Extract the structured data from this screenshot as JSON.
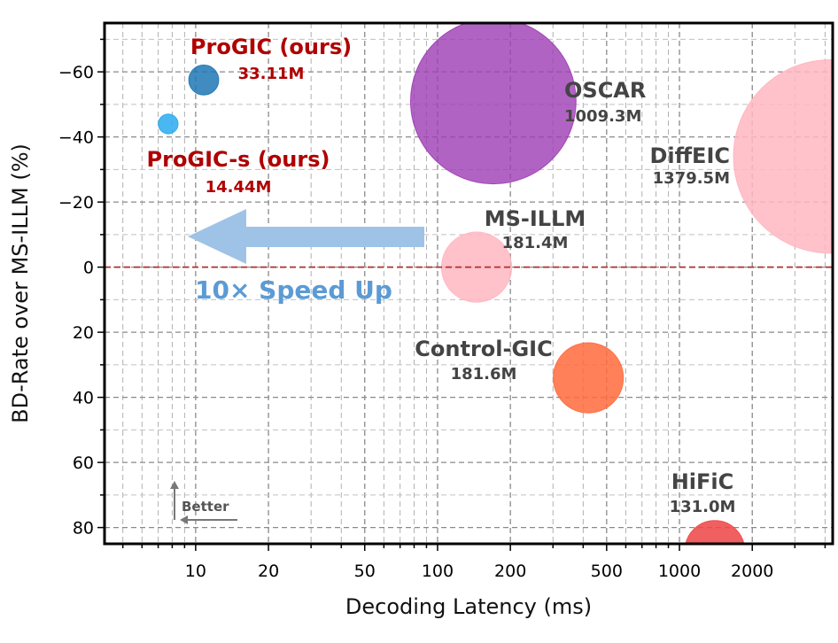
{
  "chart_data": {
    "type": "scatter",
    "title": "",
    "xlabel": "Decoding Latency (ms)",
    "ylabel": "BD-Rate over MS-ILLM (%)",
    "xscale": "log",
    "xlim": [
      4.2,
      4300
    ],
    "ylim": [
      85,
      -75
    ],
    "y_axis_inverted": true,
    "grid": true,
    "x_ticks": [
      10,
      20,
      50,
      100,
      200,
      500,
      1000,
      2000
    ],
    "x_tick_labels": [
      "10",
      "20",
      "50",
      "100",
      "200",
      "500",
      1000,
      2000
    ],
    "y_ticks": [
      -60,
      -40,
      -20,
      0,
      20,
      40,
      60,
      80
    ],
    "y_tick_labels": [
      "−60",
      "−40",
      "−20",
      "0",
      "20",
      "40",
      "60",
      "80"
    ],
    "reference_line": {
      "y": 0,
      "style": "dashed",
      "color": "#b03030"
    },
    "points": [
      {
        "name": "ProGIC (ours)",
        "params": "33.11M",
        "latency_ms": 10.8,
        "bd_rate": -57.5,
        "model_size_m": 33.11,
        "color": "#1f77b4",
        "label_color": "#b00000"
      },
      {
        "name": "ProGIC-s (ours)",
        "params": "14.44M",
        "latency_ms": 7.7,
        "bd_rate": -44,
        "model_size_m": 14.44,
        "color": "#29aaee",
        "label_color": "#b00000"
      },
      {
        "name": "OSCAR",
        "params": "1009.3M",
        "latency_ms": 170,
        "bd_rate": -51,
        "model_size_m": 1009.3,
        "color": "#9d3cb4",
        "label_color": "#444444"
      },
      {
        "name": "DiffEIC",
        "params": "1379.5M",
        "latency_ms": 4200,
        "bd_rate": -34,
        "model_size_m": 1379.5,
        "color": "#ffb6c1",
        "label_color": "#444444"
      },
      {
        "name": "MS-ILLM",
        "params": "181.4M",
        "latency_ms": 145,
        "bd_rate": 0,
        "model_size_m": 181.4,
        "color": "#ffb6c1",
        "label_color": "#444444"
      },
      {
        "name": "Control-GIC",
        "params": "181.6M",
        "latency_ms": 420,
        "bd_rate": 34,
        "model_size_m": 181.6,
        "color": "#ff6a3c",
        "label_color": "#444444"
      },
      {
        "name": "HiFiC",
        "params": "131.0M",
        "latency_ms": 1400,
        "bd_rate": 87,
        "model_size_m": 131.0,
        "color": "#ee4444",
        "label_color": "#444444"
      }
    ],
    "annotations": {
      "speedup_text": "10× Speed Up",
      "speedup_color": "#5b9bd5",
      "better_text": "Better"
    }
  }
}
